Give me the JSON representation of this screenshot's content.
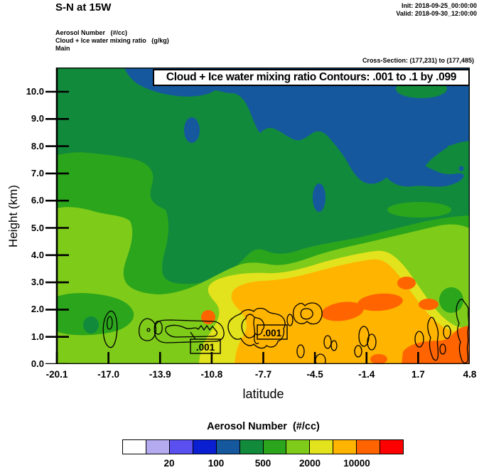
{
  "header": {
    "title": "S-N at 15W",
    "init_line": "Init: 2018-09-25_00:00:00",
    "valid_line": "Valid: 2018-09-30_12:00:00",
    "legend_lines": "Aerosol Number   (#/cc)\nCloud + Ice water mixing ratio   (g/kg)\nMain",
    "cross_section": "Cross-Section: (177,231) to (177,485)"
  },
  "chart_data": {
    "type": "heatmap",
    "variant": "filled-contour vertical cross-section with overlaid line contours",
    "title": "Cloud + Ice water mixing ratio Contours: .001 to .1 by .099",
    "xlabel": "latitude",
    "ylabel": "Height (km)",
    "x_ticks": [
      "-20.1",
      "-17.0",
      "-13.9",
      "-10.8",
      "-7.7",
      "-4.5",
      "-1.4",
      "1.7",
      "4.8"
    ],
    "y_ticks": [
      "10.0",
      "9.0",
      "8.0",
      "7.0",
      "6.0",
      "5.0",
      "4.0",
      "3.0",
      "2.0",
      "1.0",
      "0.0"
    ],
    "xlim": [
      -20.1,
      4.8
    ],
    "ylim": [
      0,
      10
    ],
    "grid": false,
    "fill_field": "Aerosol Number (#/cc)",
    "overlay_contours": {
      "field": "Cloud + Ice water mixing ratio (g/kg)",
      "levels": ".001 to .1 by .099",
      "labels": [
        ".001",
        ".001"
      ],
      "description": "thin black closed contours clustered between 0.5 and 2.5 km across the section"
    },
    "colorbar": {
      "title": "Aerosol Number  (#/cc)",
      "colors": [
        "#FFFFFF",
        "#B4AAF0",
        "#5A50F0",
        "#0A1ED2",
        "#15589E",
        "#128A3C",
        "#2BA51C",
        "#7ECB1A",
        "#E2E21D",
        "#FFB400",
        "#FF6400",
        "#FF0000"
      ],
      "tick_labels": [
        "20",
        "100",
        "500",
        "2000",
        "10000"
      ],
      "tick_positions": [
        2,
        4,
        6,
        8,
        10
      ],
      "position": "bottom"
    },
    "regions": [
      {
        "band": "blue (~100-200 #/cc)",
        "color": "#15589E",
        "where": "along plot top 7.5-11 km, widening/descending toward north (right) to ~6 km, plus small isolated patches near lat -13 at 9 km and lat -5.5 at 5 km"
      },
      {
        "band": "dark green (~200-500)",
        "color": "#128A3C",
        "where": "background over most of the upper half of the section"
      },
      {
        "band": "green (~500-1000)",
        "color": "#2BA51C",
        "where": "band 5.5-7.5 km on the south (left) side, shallow layer 1-2.5 km near lat -18, patch near lat 1.5 at 2-2.7 km"
      },
      {
        "band": "yellow-green (~1000-2000)",
        "color": "#7ECB1A",
        "where": "boundary layer 0-5.5 km south of lat -10 and sloping mid-level band toward the north"
      },
      {
        "band": "yellow (~2000-5000)",
        "color": "#E2E21D",
        "where": "rim around the elevated plume near 2.5-3 km from lat -12 northward"
      },
      {
        "band": "amber (~5000-10000)",
        "color": "#FFB400",
        "where": "main plume 0-2.5 km from lat -11 to 4.8"
      },
      {
        "band": "orange (>10000)",
        "color": "#FF6400",
        "where": "cores near 1.8-2.2 km around lat -6.5 to -1, and near surface north of lat 1"
      }
    ]
  },
  "colors": {
    "plot_border": "#000000",
    "blue": "#15589E",
    "dark_green": "#128A3C",
    "green": "#2BA51C",
    "yellow_green": "#7ECB1A",
    "yellow": "#E2E21D",
    "amber": "#FFB400",
    "orange": "#FF6400",
    "contour_line": "#000000"
  }
}
